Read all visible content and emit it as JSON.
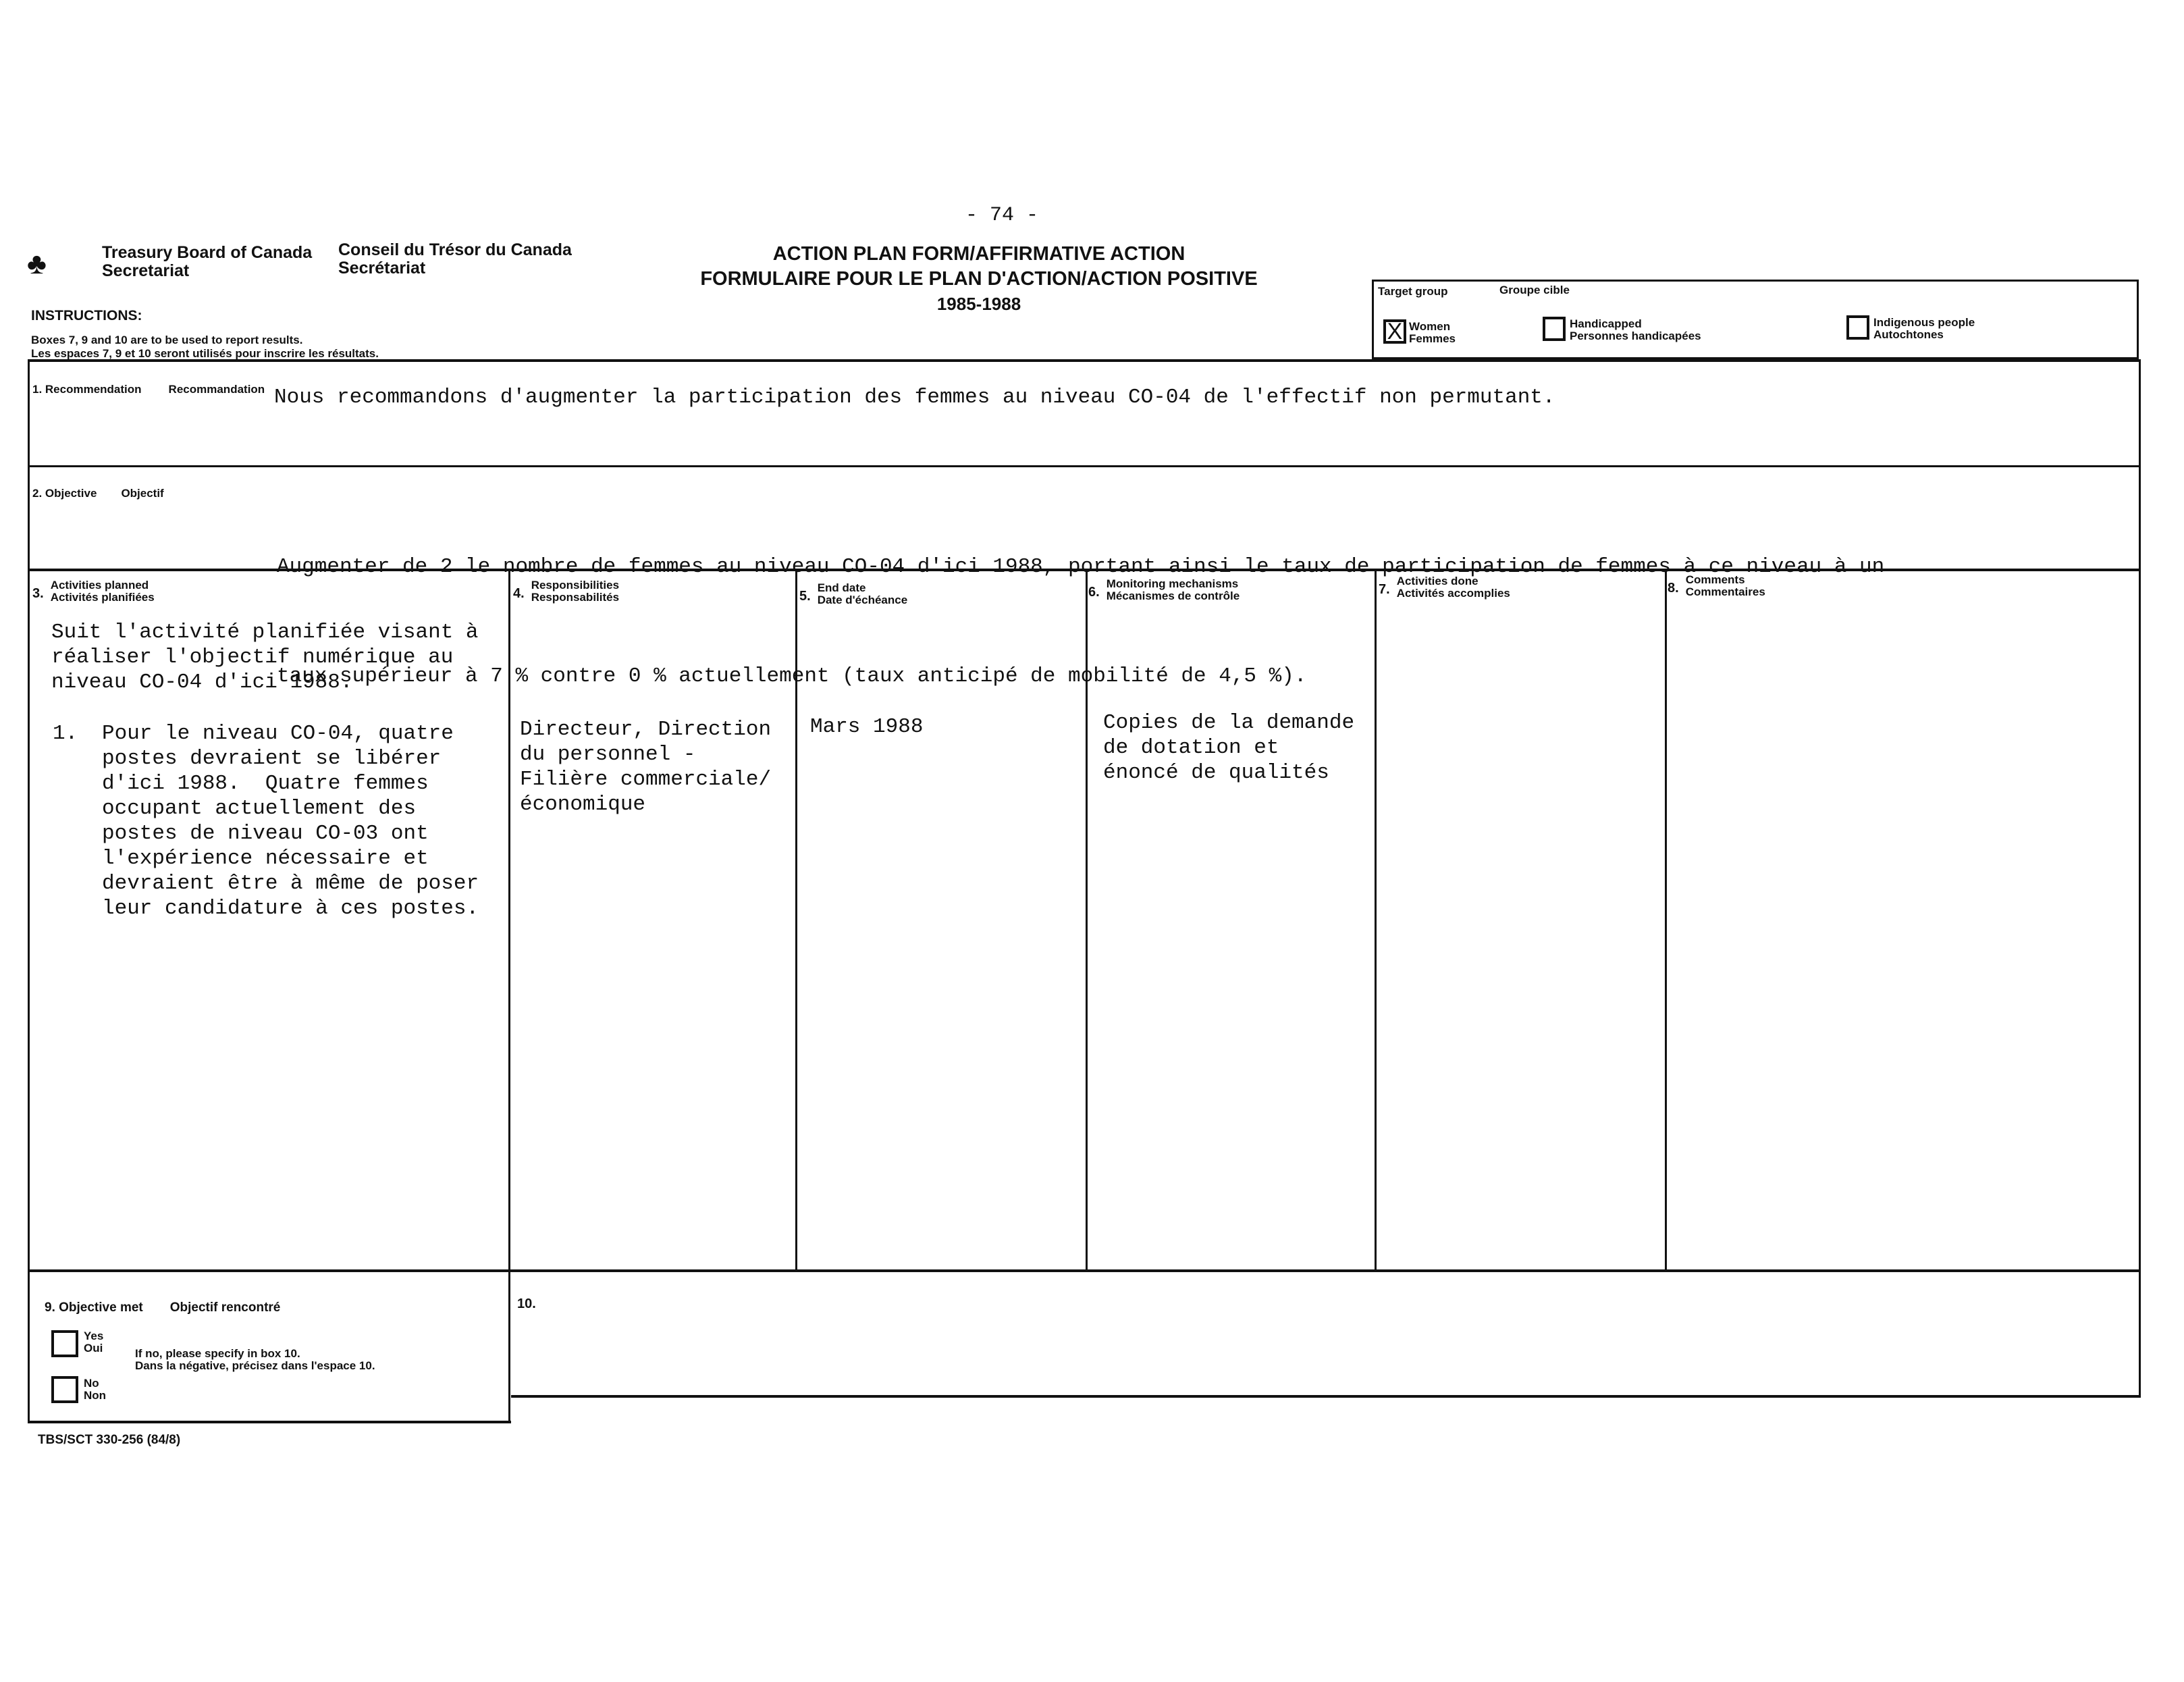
{
  "page_number": "- 74 -",
  "agency": {
    "en_name": "Treasury Board of Canada",
    "en_sub": "Secretariat",
    "fr_name": "Conseil du Trésor du Canada",
    "fr_sub": "Secrétariat"
  },
  "title": {
    "line1": "ACTION PLAN FORM/AFFIRMATIVE ACTION",
    "line2": "FORMULAIRE POUR LE PLAN D'ACTION/ACTION POSITIVE",
    "line3": "1985-1988"
  },
  "instructions": {
    "heading": "INSTRUCTIONS:",
    "en": "Boxes 7, 9 and 10 are to be used to report results.",
    "fr": "Les espaces 7, 9 et 10 seront utilisés pour inscrire les résultats."
  },
  "target_group": {
    "label_en": "Target group",
    "label_fr": "Groupe cible",
    "options": [
      {
        "en": "Women",
        "fr": "Femmes",
        "checked": true
      },
      {
        "en": "Handicapped",
        "fr": "Personnes handicapées",
        "checked": false
      },
      {
        "en": "Indigenous people",
        "fr": "Autochtones",
        "checked": false
      }
    ],
    "check_mark": "X"
  },
  "box1": {
    "label": "1. Recommendation",
    "label_fr": "Recommandation",
    "text": "Nous recommandons d'augmenter la participation des femmes au niveau CO-04 de l'effectif non permutant."
  },
  "box2": {
    "label": "2. Objective",
    "label_fr": "Objectif",
    "lines": [
      "Augmenter de 2 le nombre de femmes au niveau CO-04 d'ici 1988, portant ainsi le taux de participation de femmes à ce niveau à un",
      "taux supérieur à 7 % contre 0 % actuellement (taux anticipé de mobilité de 4,5 %)."
    ]
  },
  "columns": [
    {
      "num": "3.",
      "en": "Activities planned",
      "fr": "Activités planifiées"
    },
    {
      "num": "4.",
      "en": "Responsibilities",
      "fr": "Responsabilités"
    },
    {
      "num": "5.",
      "en": "End date",
      "fr": "Date d'échéance"
    },
    {
      "num": "6.",
      "en": "Monitoring mechanisms",
      "fr": "Mécanismes de contrôle"
    },
    {
      "num": "7.",
      "en": "Activities done",
      "fr": "Activités accomplies"
    },
    {
      "num": "8.",
      "en": "Comments",
      "fr": "Commentaires"
    }
  ],
  "col3": {
    "intro": "Suit l'activité planifiée visant à\nréaliser l'objectif numérique au\nniveau CO-04 d'ici 1988.",
    "item_num": "1.",
    "item": "Pour le niveau CO-04, quatre\npostes devraient se libérer\nd'ici 1988.  Quatre femmes\noccupant actuellement des\npostes de niveau CO-03 ont\nl'expérience nécessaire et\ndevraient être à même de poser\nleur candidature à ces postes."
  },
  "col4": "Directeur, Direction\ndu personnel -\nFilière commerciale/\néconomique",
  "col5": "Mars 1988",
  "col6": "Copies de la demande\nde dotation et\nénoncé de qualités",
  "box9": {
    "label": "9. Objective met",
    "label_fr": "Objectif rencontré",
    "yes_en": "Yes",
    "yes_fr": "Oui",
    "no_en": "No",
    "no_fr": "Non",
    "note_en": "If no, please specify in box 10.",
    "note_fr": "Dans la négative, précisez dans l'espace 10."
  },
  "box10": {
    "label": "10."
  },
  "form_code": "TBS/SCT 330-256 (84/8)"
}
